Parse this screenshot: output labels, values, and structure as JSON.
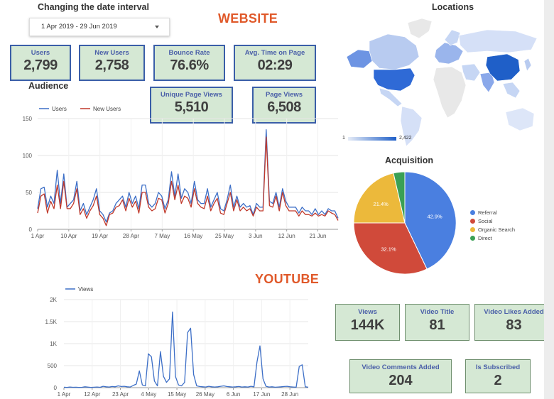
{
  "header": {
    "date_title": "Changing the date interval",
    "date_range": "1 Apr 2019 - 29 Jun 2019",
    "website_title": "WEBSITE",
    "youtube_title": "YOUTUBE"
  },
  "website_kpis": [
    {
      "label": "Users",
      "value": "2,799"
    },
    {
      "label": "New Users",
      "value": "2,758"
    },
    {
      "label": "Bounce Rate",
      "value": "76.6%"
    },
    {
      "label": "Avg. Time on Page",
      "value": "02:29"
    },
    {
      "label": "Unique Page Views",
      "value": "5,510"
    },
    {
      "label": "Page Views",
      "value": "6,508"
    }
  ],
  "youtube_kpis": [
    {
      "label": "Views",
      "value": "144K"
    },
    {
      "label": "Video Title",
      "value": "81"
    },
    {
      "label": "Video Likes Added",
      "value": "83"
    },
    {
      "label": "Video Comments Added",
      "value": "204"
    },
    {
      "label": "Is Subscribed",
      "value": "2"
    }
  ],
  "map": {
    "title": "Locations",
    "scale_min": "1",
    "scale_max": "2,422",
    "colors": {
      "low": "#e6ecf7",
      "high": "#1f5fc8",
      "none": "#e8e8e8"
    }
  },
  "chart_data": [
    {
      "type": "line",
      "title": "Audience",
      "x_ticks": [
        "1 Apr",
        "10 Apr",
        "19 Apr",
        "28 Apr",
        "7 May",
        "16 May",
        "25 May",
        "3 Jun",
        "12 Jun",
        "21 Jun"
      ],
      "ylim": [
        0,
        150
      ],
      "yticks": [
        0,
        50,
        100,
        150
      ],
      "grid": true,
      "legend": "top-left",
      "series": [
        {
          "name": "Users",
          "color": "#3d6fc7",
          "values": [
            28,
            55,
            57,
            30,
            45,
            35,
            80,
            35,
            75,
            30,
            35,
            40,
            65,
            25,
            35,
            20,
            30,
            40,
            55,
            25,
            20,
            10,
            22,
            25,
            35,
            40,
            45,
            30,
            50,
            35,
            45,
            28,
            60,
            60,
            35,
            30,
            35,
            50,
            45,
            28,
            40,
            78,
            45,
            75,
            42,
            55,
            50,
            35,
            65,
            40,
            35,
            35,
            55,
            30,
            40,
            50,
            28,
            25,
            40,
            60,
            30,
            45,
            30,
            35,
            30,
            32,
            20,
            35,
            30,
            30,
            135,
            38,
            35,
            50,
            30,
            55,
            38,
            30,
            30,
            30,
            22,
            30,
            25,
            25,
            20,
            28,
            20,
            25,
            20,
            28,
            25,
            25,
            15
          ]
        },
        {
          "name": "New Users",
          "color": "#c0392b",
          "values": [
            22,
            45,
            48,
            22,
            38,
            28,
            60,
            28,
            65,
            28,
            28,
            35,
            55,
            20,
            28,
            15,
            25,
            32,
            45,
            20,
            15,
            5,
            20,
            22,
            30,
            32,
            40,
            25,
            42,
            30,
            38,
            22,
            50,
            50,
            30,
            25,
            28,
            42,
            40,
            22,
            35,
            65,
            40,
            60,
            35,
            45,
            42,
            30,
            55,
            35,
            30,
            28,
            45,
            25,
            35,
            42,
            22,
            20,
            35,
            50,
            25,
            40,
            25,
            30,
            25,
            28,
            18,
            30,
            25,
            25,
            125,
            32,
            30,
            45,
            25,
            50,
            32,
            25,
            25,
            25,
            18,
            25,
            20,
            20,
            18,
            22,
            18,
            20,
            18,
            25,
            22,
            20,
            12
          ]
        }
      ]
    },
    {
      "type": "pie",
      "title": "Acquisition",
      "legend": "right",
      "slices": [
        {
          "name": "Referral",
          "value": 42.9,
          "label": "42.9%",
          "color": "#4a7fe0"
        },
        {
          "name": "Social",
          "value": 32.1,
          "label": "32.1%",
          "color": "#d04a3a"
        },
        {
          "name": "Organic Search",
          "value": 21.4,
          "label": "21.4%",
          "color": "#ecb93b"
        },
        {
          "name": "Direct",
          "value": 3.6,
          "label": "",
          "color": "#3aa055"
        }
      ]
    },
    {
      "type": "line",
      "title": "",
      "x_ticks": [
        "1 Apr",
        "12 Apr",
        "23 Apr",
        "4 May",
        "15 May",
        "26 May",
        "6 Jun",
        "17 Jun",
        "28 Jun"
      ],
      "ylim": [
        0,
        2000
      ],
      "yticks": [
        0,
        500,
        1000,
        1500,
        2000
      ],
      "ytick_labels": [
        "0",
        "500",
        "1K",
        "1.5K",
        "2K"
      ],
      "grid": true,
      "legend": "top-left",
      "series": [
        {
          "name": "Views",
          "color": "#3d6fc7",
          "values": [
            10,
            5,
            15,
            8,
            10,
            5,
            8,
            20,
            12,
            5,
            10,
            15,
            8,
            30,
            20,
            15,
            25,
            20,
            40,
            25,
            30,
            20,
            15,
            50,
            80,
            380,
            60,
            40,
            770,
            700,
            150,
            40,
            820,
            260,
            120,
            200,
            1720,
            250,
            60,
            40,
            120,
            1250,
            1350,
            300,
            40,
            25,
            20,
            15,
            30,
            20,
            15,
            20,
            30,
            40,
            25,
            20,
            15,
            20,
            25,
            15,
            20,
            15,
            30,
            20,
            580,
            950,
            200,
            30,
            15,
            20,
            10,
            15,
            20,
            25,
            30,
            20,
            15,
            10,
            480,
            520,
            20,
            10
          ]
        }
      ]
    }
  ]
}
